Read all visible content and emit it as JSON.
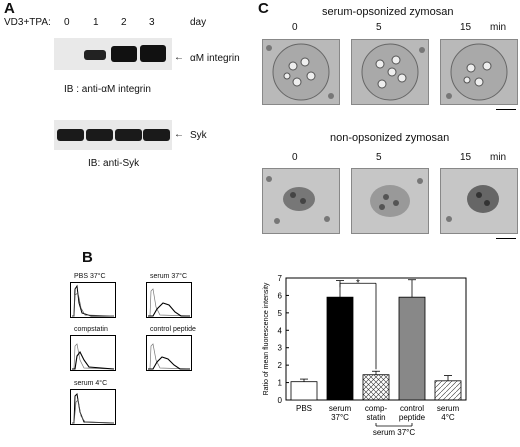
{
  "panelA": {
    "letter": "A",
    "treatment_label": "VD3+TPA:",
    "days": [
      "0",
      "1",
      "2",
      "3"
    ],
    "day_unit": "day",
    "blot1_band": "αM integrin",
    "blot1_ib": "IB : anti-αM integrin",
    "blot2_band": "Syk",
    "blot2_ib": "IB: anti-Syk"
  },
  "panelB": {
    "letter": "B",
    "histograms": [
      {
        "label": "PBS 37°C"
      },
      {
        "label": "serum 37°C"
      },
      {
        "label": "compstatin"
      },
      {
        "label": "control peptide"
      },
      {
        "label": "serum 4°C"
      }
    ]
  },
  "panelC": {
    "letter": "C",
    "row1_title": "serum-opsonized zymosan",
    "row2_title": "non-opsonized zymosan",
    "times": [
      "0",
      "5",
      "15"
    ],
    "time_unit": "min"
  },
  "chart_data": {
    "type": "bar",
    "ylabel": "Ratio of mean fluorescence intensity",
    "ylim": [
      0,
      7
    ],
    "yticks": [
      "0",
      "1",
      "2",
      "3",
      "4",
      "5",
      "6",
      "7"
    ],
    "categories": [
      "PBS",
      "serum 37°C",
      "comp-statin",
      "control peptide",
      "serum 4°C"
    ],
    "category_lines": [
      [
        "PBS"
      ],
      [
        "serum",
        "37°C"
      ],
      [
        "comp-",
        "statin"
      ],
      [
        "control",
        "peptide"
      ],
      [
        "serum",
        "4°C"
      ]
    ],
    "values": [
      1.05,
      5.9,
      1.45,
      5.9,
      1.1
    ],
    "errors": [
      0.15,
      0.95,
      0.2,
      1.0,
      0.3
    ],
    "fills": [
      "white",
      "black",
      "crosshatch",
      "gray",
      "hatch"
    ],
    "group_label": "serum 37°C",
    "significance": "*"
  }
}
